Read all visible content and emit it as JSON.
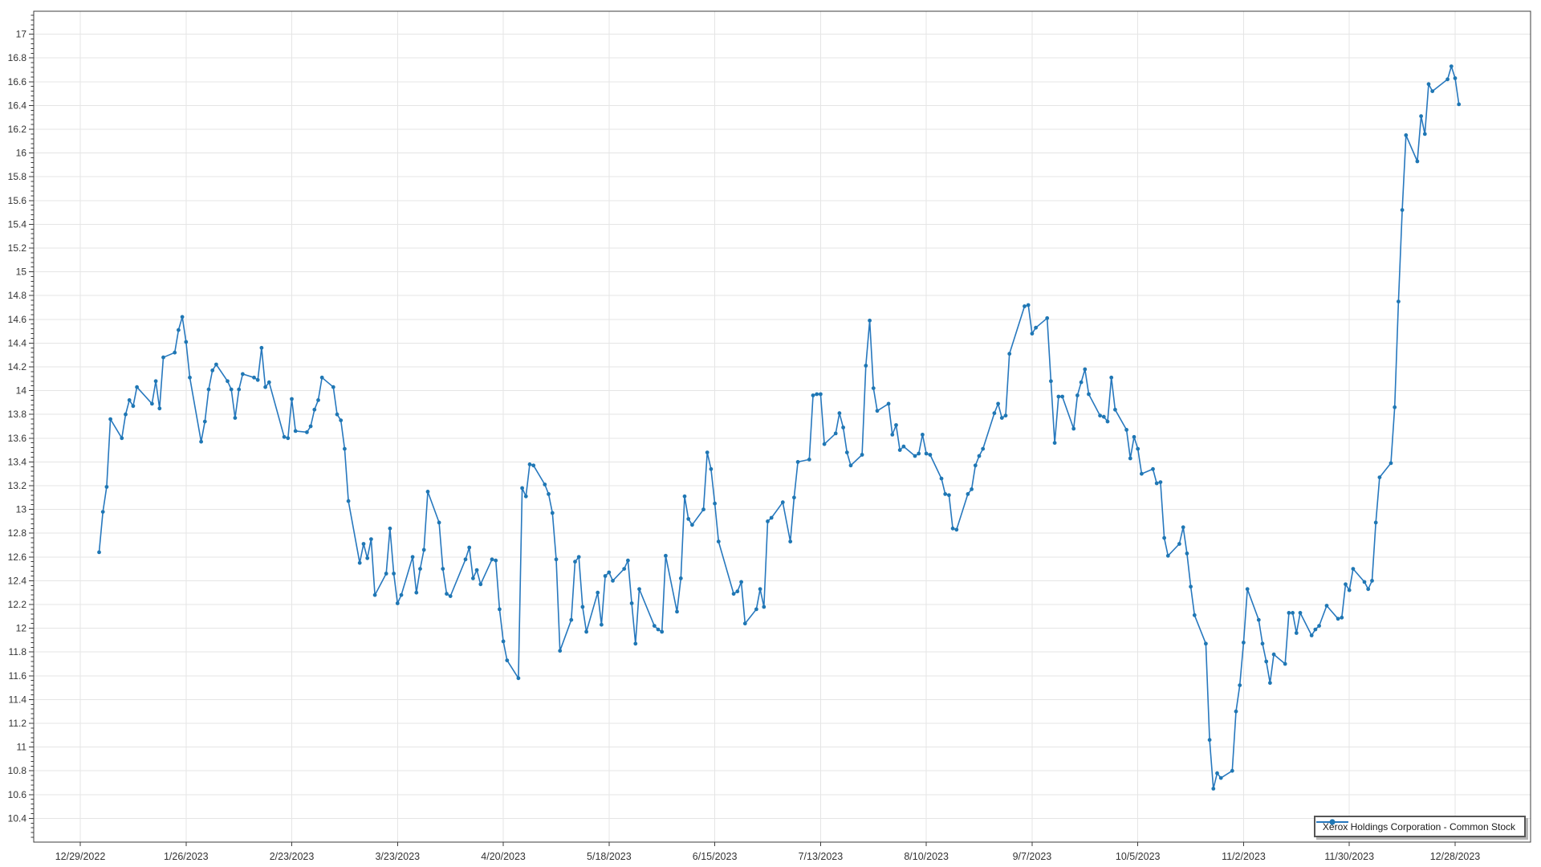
{
  "page": {
    "background": "#ffffff"
  },
  "chart_data": {
    "type": "line",
    "title": "",
    "legend": {
      "label": "Xerox Holdings Corporation - Common Stock",
      "position": "bottom-right"
    },
    "grid": true,
    "colors": {
      "line": "#2778be",
      "marker": "#1f77b4",
      "grid": "#e5e5e5",
      "axis": "#3c3c3c",
      "tick_text": "#333333",
      "legend_border": "#565656",
      "background": "#ffffff"
    },
    "x_axis": {
      "start_date": "12/29/2022",
      "tick_labels": [
        "12/29/2022",
        "1/26/2023",
        "2/23/2023",
        "3/23/2023",
        "4/20/2023",
        "5/18/2023",
        "6/15/2023",
        "7/13/2023",
        "8/10/2023",
        "9/7/2023",
        "10/5/2023",
        "11/2/2023",
        "11/30/2023",
        "12/28/2023"
      ]
    },
    "y_axis": {
      "label_min": 10.4,
      "label_max": 17.0,
      "step": 0.2,
      "axis_min": 10.2,
      "axis_max": 17.19
    },
    "series": [
      {
        "name": "Xerox Holdings Corporation - Common Stock",
        "dates": [
          "1/3/2023",
          "1/4/2023",
          "1/5/2023",
          "1/6/2023",
          "1/9/2023",
          "1/10/2023",
          "1/11/2023",
          "1/12/2023",
          "1/13/2023",
          "1/17/2023",
          "1/18/2023",
          "1/19/2023",
          "1/20/2023",
          "1/23/2023",
          "1/24/2023",
          "1/25/2023",
          "1/26/2023",
          "1/27/2023",
          "1/30/2023",
          "1/31/2023",
          "2/1/2023",
          "2/2/2023",
          "2/3/2023",
          "2/6/2023",
          "2/7/2023",
          "2/8/2023",
          "2/9/2023",
          "2/10/2023",
          "2/13/2023",
          "2/14/2023",
          "2/15/2023",
          "2/16/2023",
          "2/17/2023",
          "2/21/2023",
          "2/22/2023",
          "2/23/2023",
          "2/24/2023",
          "2/27/2023",
          "2/28/2023",
          "3/1/2023",
          "3/2/2023",
          "3/3/2023",
          "3/6/2023",
          "3/7/2023",
          "3/8/2023",
          "3/9/2023",
          "3/10/2023",
          "3/13/2023",
          "3/14/2023",
          "3/15/2023",
          "3/16/2023",
          "3/17/2023",
          "3/20/2023",
          "3/21/2023",
          "3/22/2023",
          "3/23/2023",
          "3/24/2023",
          "3/27/2023",
          "3/28/2023",
          "3/29/2023",
          "3/30/2023",
          "3/31/2023",
          "4/3/2023",
          "4/4/2023",
          "4/5/2023",
          "4/6/2023",
          "4/10/2023",
          "4/11/2023",
          "4/12/2023",
          "4/13/2023",
          "4/14/2023",
          "4/17/2023",
          "4/18/2023",
          "4/19/2023",
          "4/20/2023",
          "4/21/2023",
          "4/24/2023",
          "4/25/2023",
          "4/26/2023",
          "4/27/2023",
          "4/28/2023",
          "5/1/2023",
          "5/2/2023",
          "5/3/2023",
          "5/4/2023",
          "5/5/2023",
          "5/8/2023",
          "5/9/2023",
          "5/10/2023",
          "5/11/2023",
          "5/12/2023",
          "5/15/2023",
          "5/16/2023",
          "5/17/2023",
          "5/18/2023",
          "5/19/2023",
          "5/22/2023",
          "5/23/2023",
          "5/24/2023",
          "5/25/2023",
          "5/26/2023",
          "5/30/2023",
          "5/31/2023",
          "6/1/2023",
          "6/2/2023",
          "6/5/2023",
          "6/6/2023",
          "6/7/2023",
          "6/8/2023",
          "6/9/2023",
          "6/12/2023",
          "6/13/2023",
          "6/14/2023",
          "6/15/2023",
          "6/16/2023",
          "6/20/2023",
          "6/21/2023",
          "6/22/2023",
          "6/23/2023",
          "6/26/2023",
          "6/27/2023",
          "6/28/2023",
          "6/29/2023",
          "6/30/2023",
          "7/3/2023",
          "7/5/2023",
          "7/6/2023",
          "7/7/2023",
          "7/10/2023",
          "7/11/2023",
          "7/12/2023",
          "7/13/2023",
          "7/14/2023",
          "7/17/2023",
          "7/18/2023",
          "7/19/2023",
          "7/20/2023",
          "7/21/2023",
          "7/24/2023",
          "7/25/2023",
          "7/26/2023",
          "7/27/2023",
          "7/28/2023",
          "7/31/2023",
          "8/1/2023",
          "8/2/2023",
          "8/3/2023",
          "8/4/2023",
          "8/7/2023",
          "8/8/2023",
          "8/9/2023",
          "8/10/2023",
          "8/11/2023",
          "8/14/2023",
          "8/15/2023",
          "8/16/2023",
          "8/17/2023",
          "8/18/2023",
          "8/21/2023",
          "8/22/2023",
          "8/23/2023",
          "8/24/2023",
          "8/25/2023",
          "8/28/2023",
          "8/29/2023",
          "8/30/2023",
          "8/31/2023",
          "9/1/2023",
          "9/5/2023",
          "9/6/2023",
          "9/7/2023",
          "9/8/2023",
          "9/11/2023",
          "9/12/2023",
          "9/13/2023",
          "9/14/2023",
          "9/15/2023",
          "9/18/2023",
          "9/19/2023",
          "9/20/2023",
          "9/21/2023",
          "9/22/2023",
          "9/25/2023",
          "9/26/2023",
          "9/27/2023",
          "9/28/2023",
          "9/29/2023",
          "10/2/2023",
          "10/3/2023",
          "10/4/2023",
          "10/5/2023",
          "10/6/2023",
          "10/9/2023",
          "10/10/2023",
          "10/11/2023",
          "10/12/2023",
          "10/13/2023",
          "10/16/2023",
          "10/17/2023",
          "10/18/2023",
          "10/19/2023",
          "10/20/2023",
          "10/23/2023",
          "10/24/2023",
          "10/25/2023",
          "10/26/2023",
          "10/27/2023",
          "10/30/2023",
          "10/31/2023",
          "11/1/2023",
          "11/2/2023",
          "11/3/2023",
          "11/6/2023",
          "11/7/2023",
          "11/8/2023",
          "11/9/2023",
          "11/10/2023",
          "11/13/2023",
          "11/14/2023",
          "11/15/2023",
          "11/16/2023",
          "11/17/2023",
          "11/20/2023",
          "11/21/2023",
          "11/22/2023",
          "11/24/2023",
          "11/27/2023",
          "11/28/2023",
          "11/29/2023",
          "11/30/2023",
          "12/1/2023",
          "12/4/2023",
          "12/5/2023",
          "12/6/2023",
          "12/7/2023",
          "12/8/2023",
          "12/11/2023",
          "12/12/2023",
          "12/13/2023",
          "12/14/2023",
          "12/15/2023",
          "12/18/2023",
          "12/19/2023",
          "12/20/2023",
          "12/21/2023",
          "12/22/2023",
          "12/26/2023",
          "12/27/2023",
          "12/28/2023",
          "12/29/2023"
        ],
        "values": [
          12.64,
          12.98,
          13.19,
          13.76,
          13.6,
          13.8,
          13.92,
          13.87,
          14.03,
          13.89,
          14.08,
          13.85,
          14.28,
          14.32,
          14.51,
          14.62,
          14.41,
          14.11,
          13.57,
          13.74,
          14.01,
          14.17,
          14.22,
          14.08,
          14.01,
          13.77,
          14.01,
          14.14,
          14.11,
          14.09,
          14.36,
          14.03,
          14.07,
          13.61,
          13.6,
          13.93,
          13.66,
          13.65,
          13.7,
          13.84,
          13.92,
          14.11,
          14.03,
          13.8,
          13.75,
          13.51,
          13.07,
          12.55,
          12.71,
          12.59,
          12.75,
          12.28,
          12.46,
          12.84,
          12.46,
          12.21,
          12.28,
          12.6,
          12.3,
          12.5,
          12.66,
          13.15,
          12.89,
          12.5,
          12.29,
          12.27,
          12.58,
          12.68,
          12.42,
          12.49,
          12.37,
          12.58,
          12.57,
          12.16,
          11.89,
          11.73,
          11.58,
          13.18,
          13.11,
          13.38,
          13.37,
          13.21,
          13.13,
          12.97,
          12.58,
          11.81,
          12.07,
          12.56,
          12.6,
          12.18,
          11.97,
          12.3,
          12.03,
          12.44,
          12.47,
          12.4,
          12.5,
          12.57,
          12.21,
          11.87,
          12.33,
          12.02,
          11.99,
          11.97,
          12.61,
          12.14,
          12.42,
          13.11,
          12.92,
          12.87,
          13.0,
          13.48,
          13.34,
          13.05,
          12.73,
          12.29,
          12.31,
          12.39,
          12.04,
          12.16,
          12.33,
          12.18,
          12.9,
          12.93,
          13.06,
          12.73,
          13.1,
          13.4,
          13.42,
          13.96,
          13.97,
          13.97,
          13.55,
          13.64,
          13.81,
          13.69,
          13.48,
          13.37,
          13.46,
          14.21,
          14.59,
          14.02,
          13.83,
          13.89,
          13.63,
          13.71,
          13.5,
          13.53,
          13.45,
          13.47,
          13.63,
          13.47,
          13.46,
          13.26,
          13.13,
          13.12,
          12.84,
          12.83,
          13.13,
          13.17,
          13.37,
          13.45,
          13.51,
          13.81,
          13.89,
          13.77,
          13.79,
          14.31,
          14.71,
          14.72,
          14.48,
          14.53,
          14.61,
          14.08,
          13.56,
          13.95,
          13.95,
          13.68,
          13.96,
          14.07,
          14.18,
          13.97,
          13.79,
          13.78,
          13.74,
          14.11,
          13.84,
          13.67,
          13.43,
          13.61,
          13.51,
          13.3,
          13.34,
          13.22,
          13.23,
          12.76,
          12.61,
          12.71,
          12.85,
          12.63,
          12.35,
          12.11,
          11.87,
          11.06,
          10.65,
          10.78,
          10.74,
          10.8,
          11.3,
          11.52,
          11.88,
          12.33,
          12.07,
          11.87,
          11.72,
          11.54,
          11.78,
          11.7,
          12.13,
          12.13,
          11.96,
          12.13,
          11.94,
          11.99,
          12.02,
          12.19,
          12.08,
          12.09,
          12.37,
          12.32,
          12.5,
          12.39,
          12.33,
          12.4,
          12.89,
          13.27,
          13.39,
          13.86,
          14.75,
          15.52,
          16.15,
          15.93,
          16.31,
          16.16,
          16.58,
          16.52,
          16.62,
          16.73,
          16.63,
          16.41
        ]
      }
    ]
  }
}
